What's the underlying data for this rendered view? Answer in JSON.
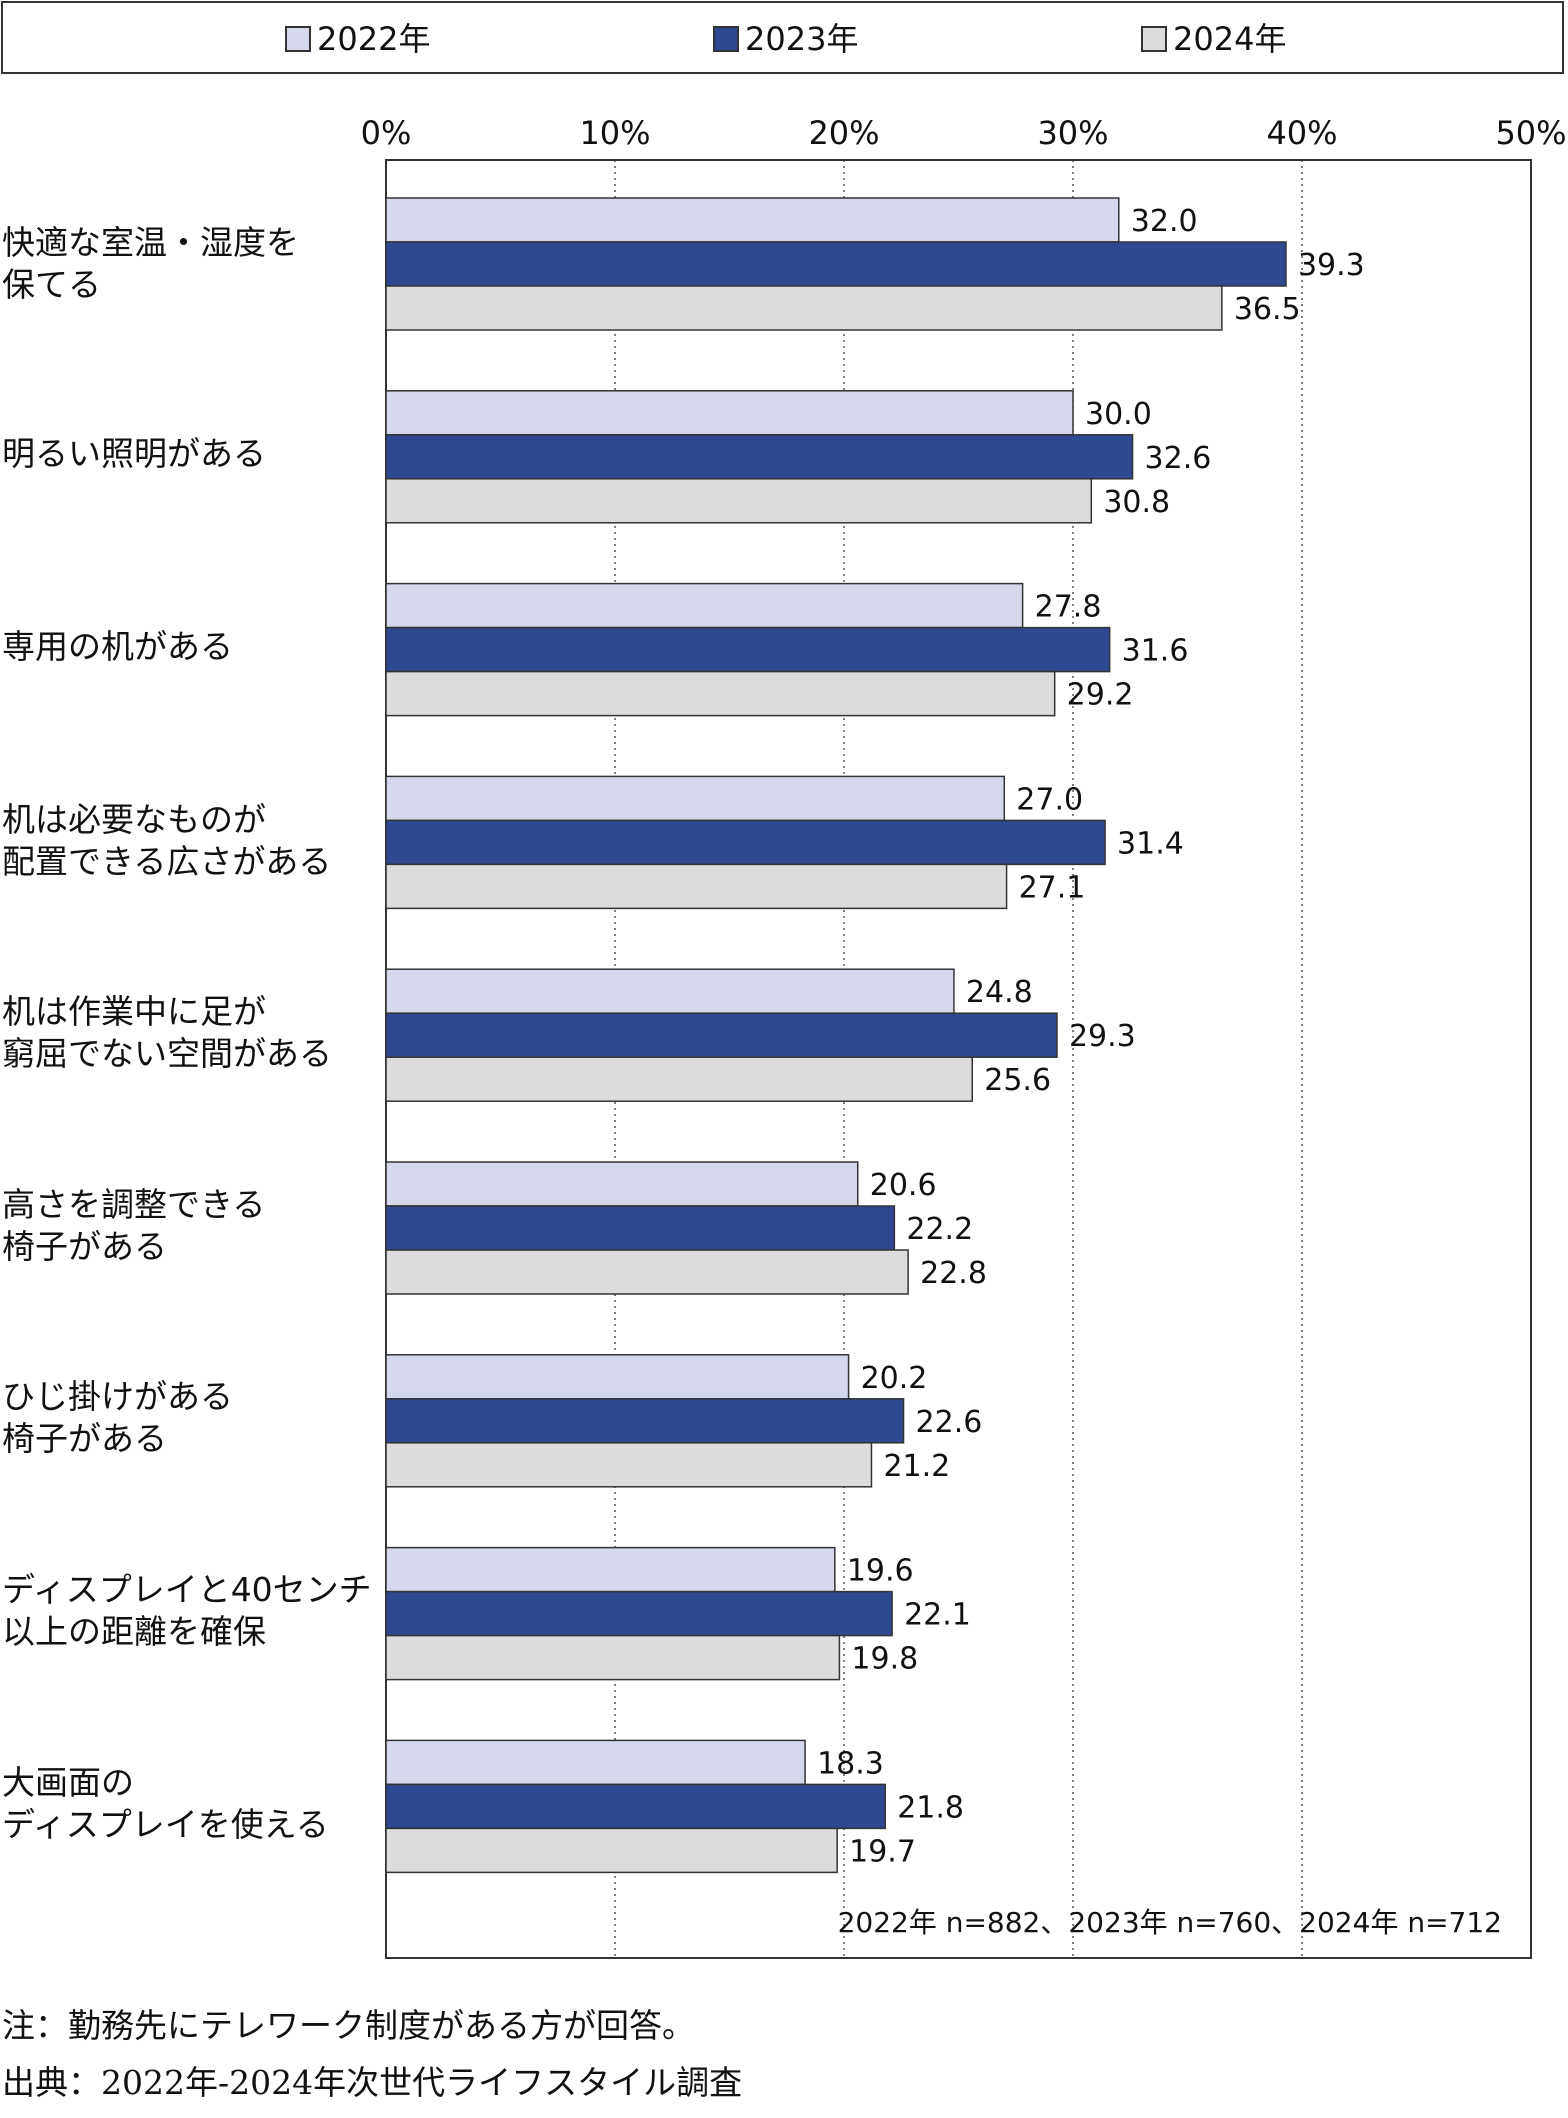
{
  "colors": {
    "s2022": "#d5d8eb",
    "s2023": "#2e4992",
    "s2024": "#dcdcdc",
    "stroke": "#333333",
    "grid": "#555555"
  },
  "legend": [
    {
      "label": "2022年",
      "color": "#d5d8eb"
    },
    {
      "label": "2023年",
      "color": "#2e4992"
    },
    {
      "label": "2024年",
      "color": "#dcdcdc"
    }
  ],
  "chart_data": {
    "type": "bar",
    "orientation": "horizontal",
    "categories": [
      "快適な室温・湿度を\n保てる",
      "明るい照明がある",
      "専用の机がある",
      "机は必要なものが\n配置できる広さがある",
      "机は作業中に足が\n窮屈でない空間がある",
      "高さを調整できる\n椅子がある",
      "ひじ掛けがある\n椅子がある",
      "ディスプレイと40センチ\n以上の距離を確保",
      "大画面の\nディスプレイを使える"
    ],
    "series": [
      {
        "name": "2022年",
        "values": [
          32.0,
          30.0,
          27.8,
          27.0,
          24.8,
          20.6,
          20.2,
          19.6,
          18.3
        ]
      },
      {
        "name": "2023年",
        "values": [
          39.3,
          32.6,
          31.6,
          31.4,
          29.3,
          22.2,
          22.6,
          22.1,
          21.8
        ]
      },
      {
        "name": "2024年",
        "values": [
          36.5,
          30.8,
          29.2,
          27.1,
          25.6,
          22.8,
          21.2,
          19.8,
          19.7
        ]
      }
    ],
    "xlim": [
      0,
      50
    ],
    "ticks": [
      "0%",
      "10%",
      "20%",
      "30%",
      "40%",
      "50%"
    ],
    "grid": "dotted vertical",
    "legend_position": "top",
    "sample_note": "2022年 n=882、2023年 n=760、2024年 n=712"
  },
  "notes": {
    "note": "注：勤務先にテレワーク制度がある方が回答。",
    "source": "出典：2022年-2024年次世代ライフスタイル調査"
  }
}
